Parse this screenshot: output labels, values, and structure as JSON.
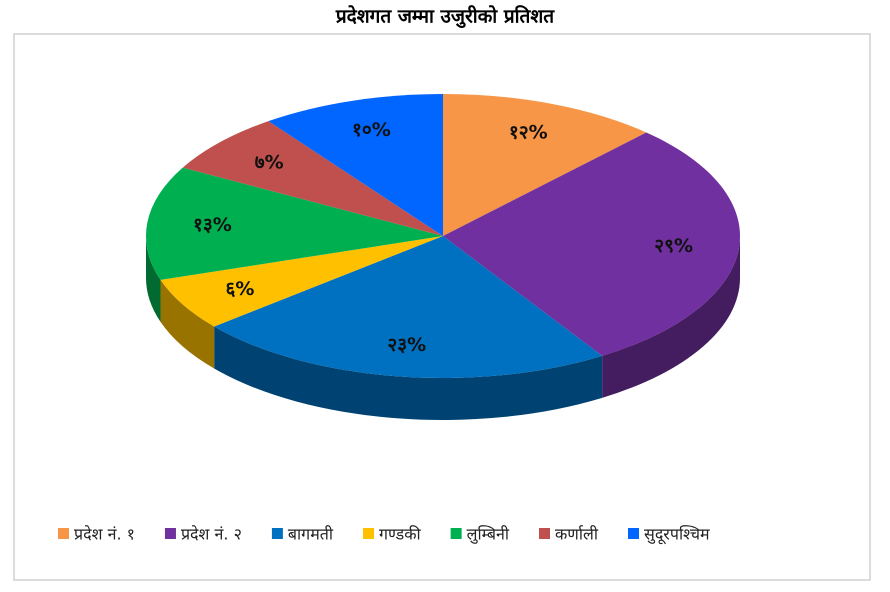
{
  "chart_data": {
    "type": "pie",
    "title": "प्रदेशगत जम्मा उजुरीको प्रतिशत",
    "categories": [
      "प्रदेश नं. १",
      "प्रदेश नं. २",
      "बागमती",
      "गण्डकी",
      "लुम्बिनी",
      "कर्णाली",
      "सुदूरपश्चिम"
    ],
    "values": [
      12,
      29,
      23,
      6,
      13,
      7,
      10
    ],
    "value_labels": [
      "१२%",
      "२९%",
      "२३%",
      "६%",
      "१३%",
      "७%",
      "१०%"
    ],
    "colors": [
      "#f79646",
      "#7030a0",
      "#0070c0",
      "#ffc000",
      "#00b050",
      "#c0504d",
      "#0066ff"
    ],
    "legend": "bottom"
  }
}
